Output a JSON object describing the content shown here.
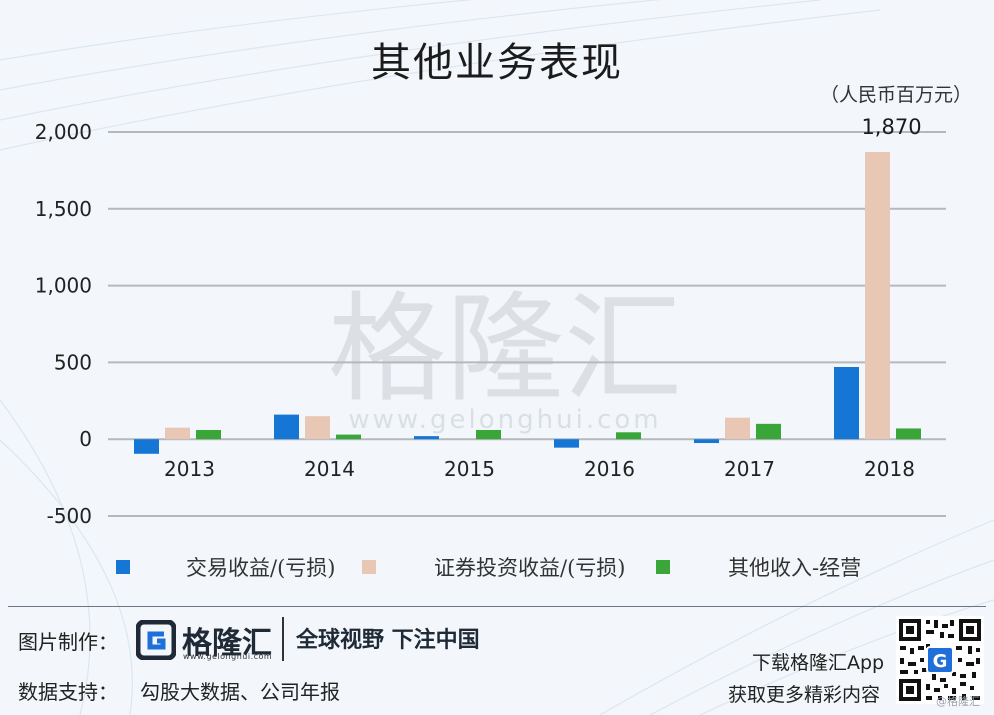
{
  "title": "其他业务表现",
  "unit": "（人民币百万元）",
  "colors": {
    "trading": "#1576d6",
    "securities": "#e8c8b4",
    "other": "#3aa63a",
    "grid": "#b5b9be",
    "axis_text": "#222222"
  },
  "chart_data": {
    "type": "bar",
    "title": "其他业务表现",
    "categories": [
      "2013",
      "2014",
      "2015",
      "2016",
      "2017",
      "2018"
    ],
    "series": [
      {
        "name": "交易收益/(亏损)",
        "values": [
          -95,
          160,
          20,
          -55,
          -25,
          470
        ]
      },
      {
        "name": "证券投资收益/(亏损)",
        "values": [
          75,
          150,
          0,
          0,
          140,
          1870
        ]
      },
      {
        "name": "其他收入-经营",
        "values": [
          60,
          30,
          60,
          45,
          100,
          70
        ]
      }
    ],
    "ylim": [
      -500,
      2000
    ],
    "yticks": [
      2000,
      1500,
      1000,
      500,
      0,
      -500
    ],
    "ytick_labels": [
      "2,000",
      "1,500",
      "1,000",
      "500",
      "0",
      "-500"
    ],
    "annotations": [
      {
        "category": "2018",
        "series": 1,
        "text": "1,870"
      }
    ],
    "grid": true,
    "legend_position": "bottom"
  },
  "watermark": {
    "text": "格隆汇",
    "url": "www.gelonghui.com"
  },
  "footer": {
    "made_by_label": "图片制作：",
    "logo_text": "格隆汇",
    "logo_url": "www.gelonghui.com",
    "slogan": "全球视野 下注中国",
    "support_label": "数据支持：",
    "support_value": "勾股大数据、公司年报",
    "download_line1": "下载格隆汇App",
    "download_line2": "获取更多精彩内容",
    "qr_badge": "G",
    "watermark_small": "@格隆汇"
  }
}
